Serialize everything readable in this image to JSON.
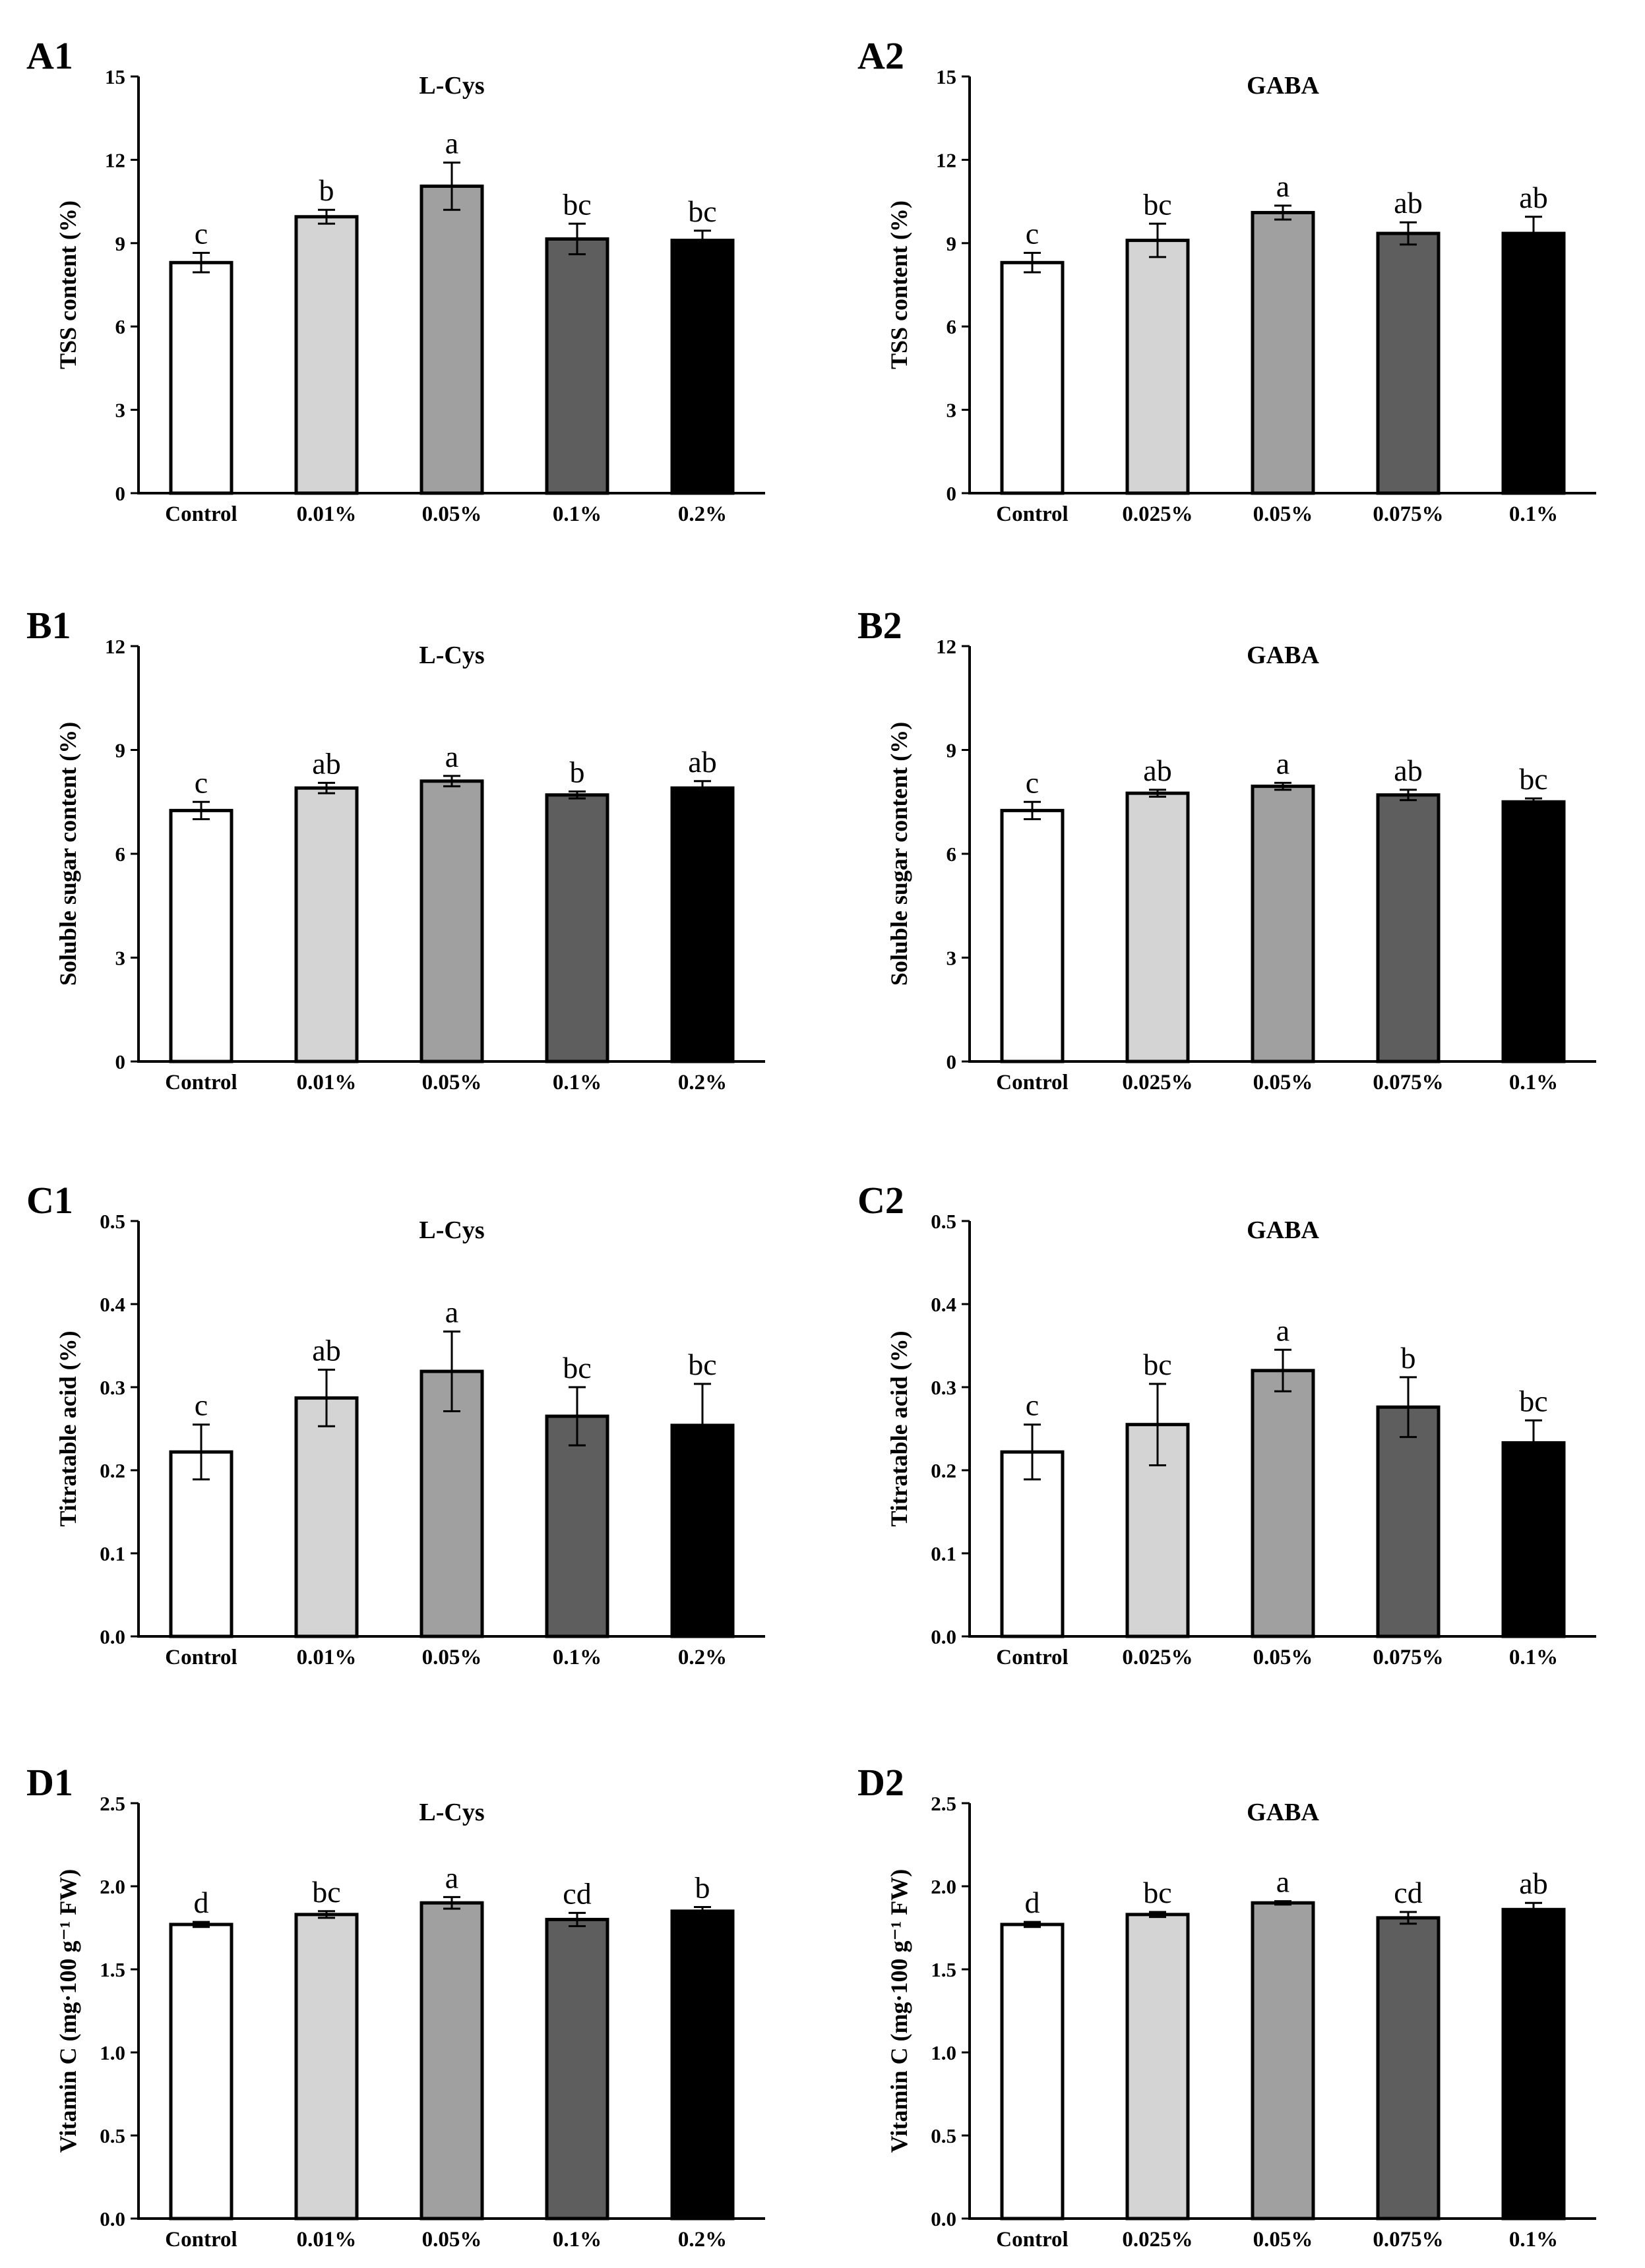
{
  "chart_data": [
    {
      "panel": "A1",
      "type": "bar",
      "title": "L-Cys",
      "xlabel": "",
      "ylabel": "TSS content (%)",
      "ylim": [
        0,
        15
      ],
      "yticks": [
        "0",
        "3",
        "6",
        "9",
        "12",
        "15"
      ],
      "categories": [
        "Control",
        "0.01%",
        "0.05%",
        "0.1%",
        "0.2%"
      ],
      "values": [
        8.3,
        9.95,
        11.05,
        9.15,
        9.1
      ],
      "errors": [
        0.35,
        0.25,
        0.85,
        0.55,
        0.35
      ],
      "letters": [
        "c",
        "b",
        "a",
        "bc",
        "bc"
      ],
      "colors": [
        "#ffffff",
        "#d4d4d4",
        "#a0a0a0",
        "#5e5e5e",
        "#000000"
      ]
    },
    {
      "panel": "A2",
      "type": "bar",
      "title": "GABA",
      "xlabel": "",
      "ylabel": "TSS content (%)",
      "ylim": [
        0,
        15
      ],
      "yticks": [
        "0",
        "3",
        "6",
        "9",
        "12",
        "15"
      ],
      "categories": [
        "Control",
        "0.025%",
        "0.05%",
        "0.075%",
        "0.1%"
      ],
      "values": [
        8.3,
        9.1,
        10.1,
        9.35,
        9.35
      ],
      "errors": [
        0.35,
        0.6,
        0.25,
        0.4,
        0.6
      ],
      "letters": [
        "c",
        "bc",
        "a",
        "ab",
        "ab"
      ],
      "colors": [
        "#ffffff",
        "#d4d4d4",
        "#a0a0a0",
        "#5e5e5e",
        "#000000"
      ]
    },
    {
      "panel": "B1",
      "type": "bar",
      "title": "L-Cys",
      "xlabel": "",
      "ylabel": "Soluble sugar content (%)",
      "ylim": [
        0,
        12
      ],
      "yticks": [
        "0",
        "3",
        "6",
        "9",
        "12"
      ],
      "categories": [
        "Control",
        "0.01%",
        "0.05%",
        "0.1%",
        "0.2%"
      ],
      "values": [
        7.25,
        7.9,
        8.1,
        7.7,
        7.9
      ],
      "errors": [
        0.25,
        0.15,
        0.15,
        0.1,
        0.2
      ],
      "letters": [
        "c",
        "ab",
        "a",
        "b",
        "ab"
      ],
      "colors": [
        "#ffffff",
        "#d4d4d4",
        "#a0a0a0",
        "#5e5e5e",
        "#000000"
      ]
    },
    {
      "panel": "B2",
      "type": "bar",
      "title": "GABA",
      "xlabel": "",
      "ylabel": "Soluble sugar content (%)",
      "ylim": [
        0,
        12
      ],
      "yticks": [
        "0",
        "3",
        "6",
        "9",
        "12"
      ],
      "categories": [
        "Control",
        "0.025%",
        "0.05%",
        "0.075%",
        "0.1%"
      ],
      "values": [
        7.25,
        7.75,
        7.95,
        7.7,
        7.5
      ],
      "errors": [
        0.25,
        0.1,
        0.1,
        0.15,
        0.1
      ],
      "letters": [
        "c",
        "ab",
        "a",
        "ab",
        "bc"
      ],
      "colors": [
        "#ffffff",
        "#d4d4d4",
        "#a0a0a0",
        "#5e5e5e",
        "#000000"
      ]
    },
    {
      "panel": "C1",
      "type": "bar",
      "title": "L-Cys",
      "xlabel": "",
      "ylabel": "Titratable acid (%)",
      "ylim": [
        0,
        0.5
      ],
      "yticks": [
        "0.0",
        "0.1",
        "0.2",
        "0.3",
        "0.4",
        "0.5"
      ],
      "categories": [
        "Control",
        "0.01%",
        "0.05%",
        "0.1%",
        "0.2%"
      ],
      "values": [
        0.222,
        0.287,
        0.319,
        0.265,
        0.254
      ],
      "errors": [
        0.033,
        0.034,
        0.048,
        0.035,
        0.05
      ],
      "letters": [
        "c",
        "ab",
        "a",
        "bc",
        "bc"
      ],
      "colors": [
        "#ffffff",
        "#d4d4d4",
        "#a0a0a0",
        "#5e5e5e",
        "#000000"
      ]
    },
    {
      "panel": "C2",
      "type": "bar",
      "title": "GABA",
      "xlabel": "",
      "ylabel": "Titratable acid (%)",
      "ylim": [
        0,
        0.5
      ],
      "yticks": [
        "0.0",
        "0.1",
        "0.2",
        "0.3",
        "0.4",
        "0.5"
      ],
      "categories": [
        "Control",
        "0.025%",
        "0.05%",
        "0.075%",
        "0.1%"
      ],
      "values": [
        0.222,
        0.255,
        0.32,
        0.276,
        0.233
      ],
      "errors": [
        0.033,
        0.049,
        0.025,
        0.036,
        0.027
      ],
      "letters": [
        "c",
        "bc",
        "a",
        "b",
        "bc"
      ],
      "colors": [
        "#ffffff",
        "#d4d4d4",
        "#a0a0a0",
        "#5e5e5e",
        "#000000"
      ]
    },
    {
      "panel": "D1",
      "type": "bar",
      "title": "L-Cys",
      "xlabel": "",
      "ylabel": "Vitamin C (mg·100 g⁻¹ FW)",
      "ylim": [
        0,
        2.5
      ],
      "yticks": [
        "0.0",
        "0.5",
        "1.0",
        "1.5",
        "2.0",
        "2.5"
      ],
      "categories": [
        "Control",
        "0.01%",
        "0.05%",
        "0.1%",
        "0.2%"
      ],
      "values": [
        1.77,
        1.83,
        1.9,
        1.8,
        1.85
      ],
      "errors": [
        0.015,
        0.02,
        0.035,
        0.04,
        0.025
      ],
      "letters": [
        "d",
        "bc",
        "a",
        "cd",
        "b"
      ],
      "colors": [
        "#ffffff",
        "#d4d4d4",
        "#a0a0a0",
        "#5e5e5e",
        "#000000"
      ]
    },
    {
      "panel": "D2",
      "type": "bar",
      "title": "GABA",
      "xlabel": "",
      "ylabel": "Vitamin C (mg·100 g⁻¹ FW)",
      "ylim": [
        0,
        2.5
      ],
      "yticks": [
        "0.0",
        "0.5",
        "1.0",
        "1.5",
        "2.0",
        "2.5"
      ],
      "categories": [
        "Control",
        "0.025%",
        "0.05%",
        "0.075%",
        "0.1%"
      ],
      "values": [
        1.77,
        1.83,
        1.9,
        1.81,
        1.86
      ],
      "errors": [
        0.015,
        0.015,
        0.01,
        0.035,
        0.04
      ],
      "letters": [
        "d",
        "bc",
        "a",
        "cd",
        "ab"
      ],
      "colors": [
        "#ffffff",
        "#d4d4d4",
        "#a0a0a0",
        "#5e5e5e",
        "#000000"
      ]
    }
  ]
}
